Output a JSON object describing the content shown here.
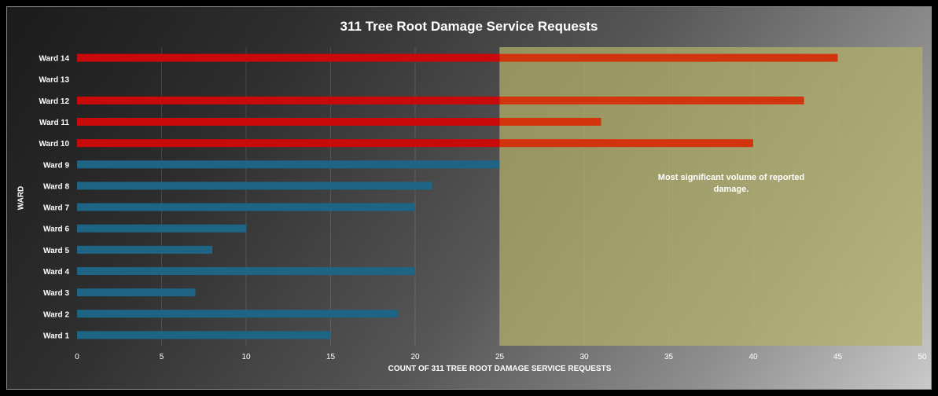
{
  "chart_data": {
    "type": "bar",
    "orientation": "horizontal",
    "title": "311 Tree Root Damage Service Requests",
    "xlabel": "COUNT OF 311 TREE ROOT DAMAGE SERVICE REQUESTS",
    "ylabel": "WARD",
    "categories": [
      "Ward 1",
      "Ward 2",
      "Ward 3",
      "Ward 4",
      "Ward 5",
      "Ward 6",
      "Ward 7",
      "Ward 8",
      "Ward 9",
      "Ward 10",
      "Ward 11",
      "Ward 12",
      "Ward 13",
      "Ward 14"
    ],
    "values": [
      15,
      19,
      7,
      20,
      8,
      10,
      20,
      21,
      25,
      40,
      31,
      43,
      0,
      45
    ],
    "highlighted_categories": [
      "Ward 10",
      "Ward 11",
      "Ward 12",
      "Ward 13",
      "Ward 14"
    ],
    "xlim": [
      0,
      50
    ],
    "xticks": [
      0,
      5,
      10,
      15,
      20,
      25,
      30,
      35,
      40,
      45,
      50
    ],
    "grid": "vertical",
    "legend": "none",
    "highlight_region": {
      "x_from": 25,
      "x_to": 50,
      "color": "#b3b26a"
    },
    "annotation": "Most significant volume of reported damage.",
    "colors": {
      "default_bar": "#1e6585",
      "highlight_bar": "#c80a0a",
      "highlight_bar_in_region": "#d2350e"
    }
  }
}
